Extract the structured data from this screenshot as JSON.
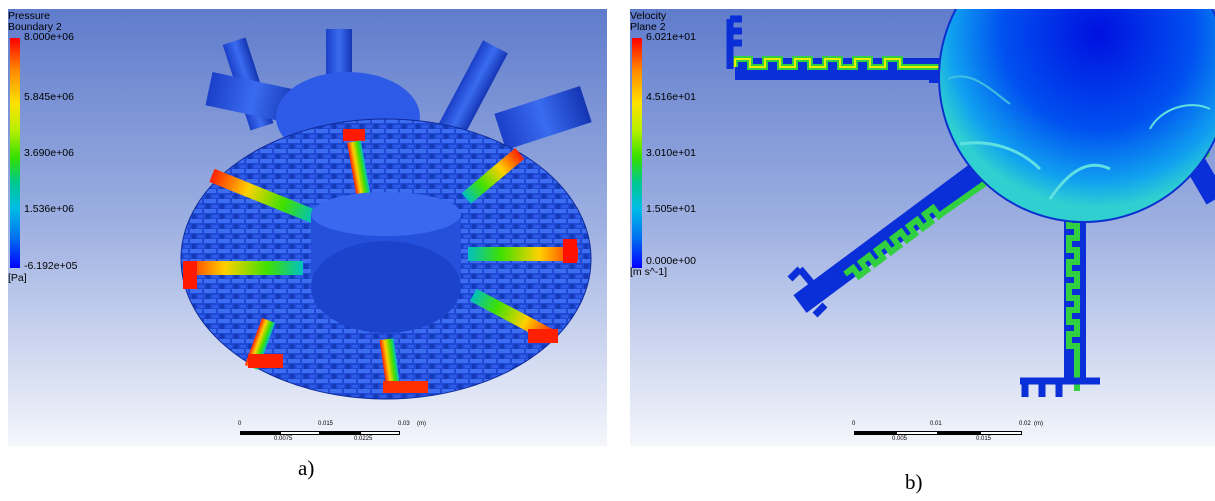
{
  "panel_a": {
    "legend": {
      "quantity": "Pressure",
      "location": "Boundary 2",
      "ticks": [
        "8.000e+06",
        "5.845e+06",
        "3.690e+06",
        "1.536e+06",
        "-6.192e+05"
      ],
      "unit": "[Pa]"
    },
    "scale": {
      "top_labels": [
        "0",
        "0.015",
        "0.03"
      ],
      "unit": "(m)",
      "bottom_labels": [
        "0.0075",
        "0.0225"
      ]
    },
    "caption": "a)"
  },
  "panel_b": {
    "legend": {
      "quantity": "Velocity",
      "location": "Plane 2",
      "ticks": [
        "6.021e+01",
        "4.516e+01",
        "3.010e+01",
        "1.505e+01",
        "0.000e+00"
      ],
      "unit": "[m s^-1]"
    },
    "scale": {
      "top_labels": [
        "0",
        "0.01",
        "0.02"
      ],
      "unit": "(m)",
      "bottom_labels": [
        "0.005",
        "0.015"
      ]
    },
    "caption": "b)"
  },
  "colors": {
    "background_top": "#5f7ccc",
    "background_bottom": "#f4f6fb",
    "solid_blue": "#1f4ad8",
    "high": "#ff0000",
    "mid": "#35e000",
    "low": "#0000ff"
  }
}
